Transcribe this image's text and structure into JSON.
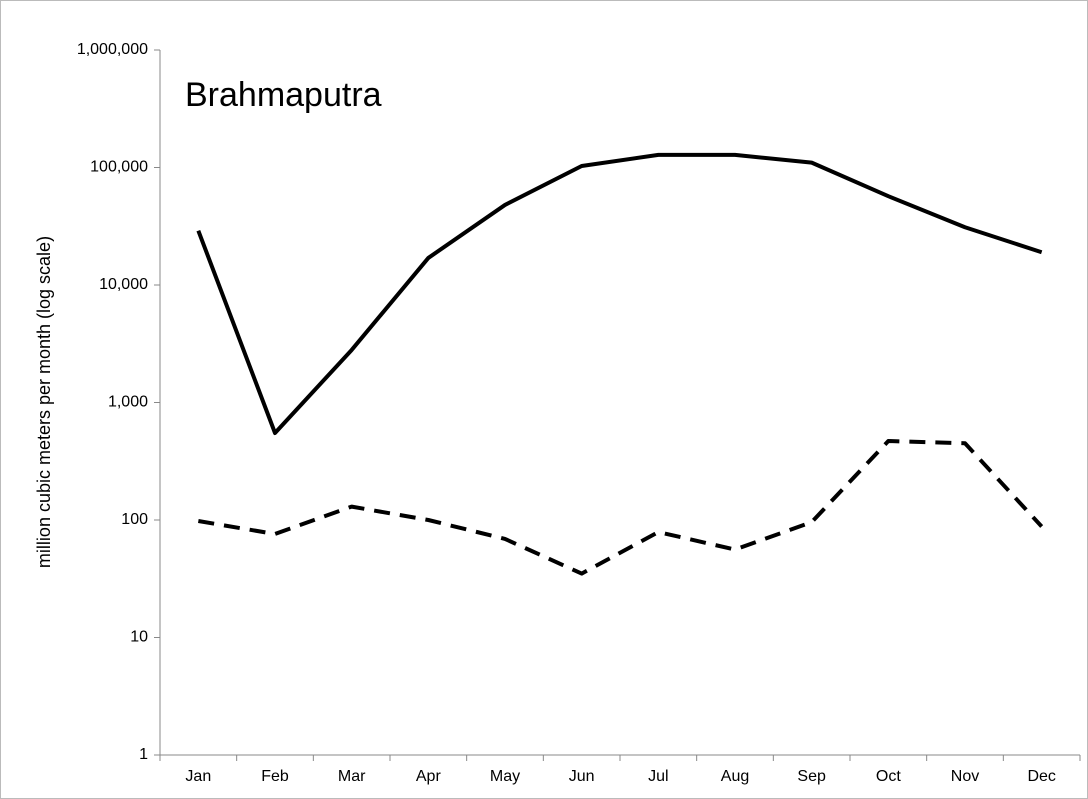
{
  "chart_data": {
    "type": "line",
    "title": "Brahmaputra",
    "y_label": "million cubic meters per month (log scale)",
    "categories": [
      "Jan",
      "Feb",
      "Mar",
      "Apr",
      "May",
      "Jun",
      "Jul",
      "Aug",
      "Sep",
      "Oct",
      "Nov",
      "Dec"
    ],
    "series": [
      {
        "color": "#000000",
        "line_style": "solid",
        "values": [
          29000,
          550,
          2800,
          17000,
          48000,
          103000,
          128000,
          128000,
          110000,
          57000,
          31000,
          19000
        ]
      },
      {
        "color": "#000000",
        "line_style": "dashed",
        "values": [
          98,
          76,
          130,
          100,
          69,
          35,
          79,
          56,
          96,
          470,
          450,
          88
        ]
      }
    ],
    "log_scale": true,
    "ylim": [
      1,
      1000000
    ],
    "yticks": [
      1,
      10,
      100,
      {
        "value": 1000,
        "label": "1,000"
      },
      {
        "value": 10000,
        "label": "10,000"
      },
      {
        "value": 100000,
        "label": "100,000"
      },
      {
        "value": 1000000,
        "label": "1,000,000"
      }
    ],
    "grid": false
  }
}
